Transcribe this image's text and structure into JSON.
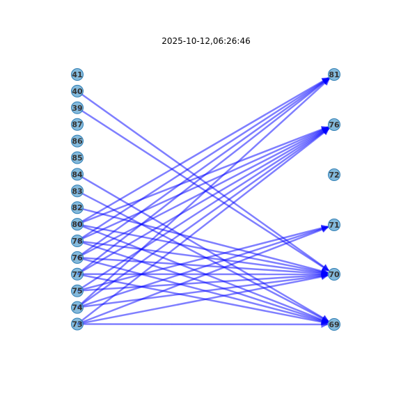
{
  "title": "2025-10-12,06:26:46",
  "colors": {
    "node_fill": "#5ba3d0",
    "node_stroke": "#2e7db3",
    "edge": "#0000ff",
    "label": "#333333"
  },
  "left_nodes": [
    "41",
    "40",
    "39",
    "87",
    "86",
    "85",
    "84",
    "83",
    "82",
    "80",
    "78",
    "76",
    "77",
    "75",
    "74",
    "73"
  ],
  "right_nodes": [
    "81",
    "76",
    "72",
    "71",
    "70",
    "69"
  ],
  "edges": [
    {
      "from": "40",
      "to": "70"
    },
    {
      "from": "39",
      "to": "70"
    },
    {
      "from": "84",
      "to": "69"
    },
    {
      "from": "83",
      "to": "69"
    },
    {
      "from": "82",
      "to": "70"
    },
    {
      "from": "80",
      "to": "81"
    },
    {
      "from": "80",
      "to": "76"
    },
    {
      "from": "80",
      "to": "70"
    },
    {
      "from": "80",
      "to": "69"
    },
    {
      "from": "78",
      "to": "81"
    },
    {
      "from": "78",
      "to": "76"
    },
    {
      "from": "78",
      "to": "70"
    },
    {
      "from": "78",
      "to": "69"
    },
    {
      "from": "76",
      "to": "81"
    },
    {
      "from": "76",
      "to": "76"
    },
    {
      "from": "76",
      "to": "70"
    },
    {
      "from": "76",
      "to": "69"
    },
    {
      "from": "77",
      "to": "81"
    },
    {
      "from": "77",
      "to": "76"
    },
    {
      "from": "77",
      "to": "70"
    },
    {
      "from": "77",
      "to": "69"
    },
    {
      "from": "75",
      "to": "76"
    },
    {
      "from": "75",
      "to": "71"
    },
    {
      "from": "75",
      "to": "70"
    },
    {
      "from": "74",
      "to": "81"
    },
    {
      "from": "74",
      "to": "76"
    },
    {
      "from": "74",
      "to": "71"
    },
    {
      "from": "74",
      "to": "70"
    },
    {
      "from": "73",
      "to": "76"
    },
    {
      "from": "73",
      "to": "71"
    },
    {
      "from": "73",
      "to": "70"
    },
    {
      "from": "73",
      "to": "69"
    }
  ]
}
